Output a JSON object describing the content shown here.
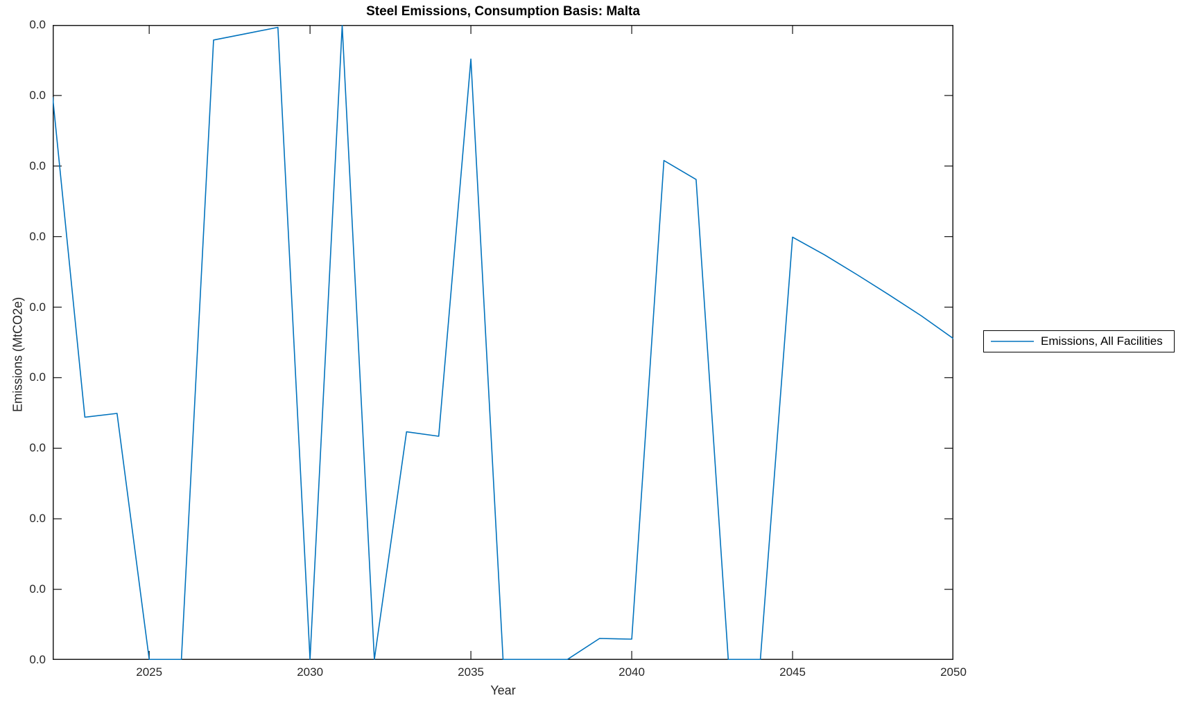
{
  "title": "Steel Emissions, Consumption Basis: Malta",
  "axes": {
    "xlabel": "Year",
    "ylabel": "Emissions (MtCO2e)",
    "x_tick_labels": [
      "2025",
      "2030",
      "2035",
      "2040",
      "2045",
      "2050"
    ],
    "x_tick_years": [
      2025,
      2030,
      2035,
      2040,
      2045,
      2050
    ],
    "x_range": [
      2022,
      2050
    ],
    "y_tick_labels": [
      "0.0",
      "0.0",
      "0.0",
      "0.0",
      "0.0",
      "0.0",
      "0.0",
      "0.0",
      "0.0",
      "0.0"
    ]
  },
  "legend": {
    "entries": [
      {
        "label": "Emissions, All Facilities",
        "color": "#0072BD"
      }
    ],
    "position": "right-outside"
  },
  "colors": {
    "line": "#0072BD",
    "axis": "#1a1a1a",
    "background": "#ffffff"
  },
  "chart_data": {
    "type": "line",
    "title": "Steel Emissions, Consumption Basis: Malta",
    "xlabel": "Year",
    "ylabel": "Emissions (MtCO2e)",
    "x_range": [
      2022,
      2050
    ],
    "x_ticks": [
      2025,
      2030,
      2035,
      2040,
      2045,
      2050
    ],
    "y_tick_labels": [
      "0.0",
      "0.0",
      "0.0",
      "0.0",
      "0.0",
      "0.0",
      "0.0",
      "0.0",
      "0.0",
      "0.0"
    ],
    "y_axis_note": "All y-axis tick labels render as 0.0 (values are vanishingly small); series values below are expressed as fraction of the plotted y-axis height, 0 = bottom axis, 1 = top axis",
    "grid": false,
    "legend_position": "right-outside",
    "series": [
      {
        "name": "Emissions, All Facilities",
        "color": "#0072BD",
        "x": [
          2022,
          2023,
          2024,
          2025,
          2026,
          2027,
          2028,
          2029,
          2030,
          2031,
          2032,
          2033,
          2034,
          2035,
          2036,
          2037,
          2038,
          2039,
          2040,
          2041,
          2042,
          2043,
          2044,
          2045,
          2046,
          2047,
          2048,
          2049,
          2050
        ],
        "y_axis_fraction": [
          0.887,
          0.382,
          0.388,
          0.0,
          0.0,
          0.977,
          0.987,
          0.997,
          0.0,
          1.0,
          0.0,
          0.359,
          0.352,
          0.947,
          0.0,
          0.0,
          0.0,
          0.033,
          0.032,
          0.787,
          0.757,
          0.0,
          0.0,
          0.666,
          0.638,
          0.607,
          0.575,
          0.542,
          0.506
        ]
      }
    ]
  }
}
